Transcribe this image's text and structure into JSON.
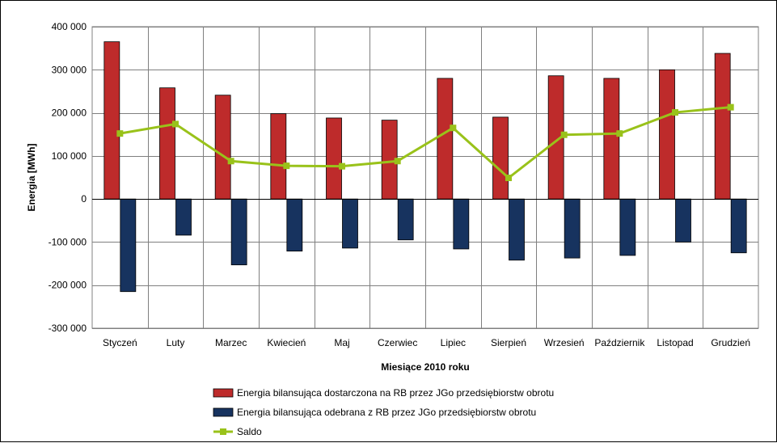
{
  "chart_data": {
    "type": "bar",
    "title": "",
    "xlabel": "Miesiące 2010  roku",
    "ylabel": "Energia [MWh]",
    "ylim": [
      -300000,
      400000
    ],
    "yticks": [
      400000,
      300000,
      200000,
      100000,
      0,
      -100000,
      -200000,
      -300000
    ],
    "ytick_labels": [
      "400 000",
      "300 000",
      "200 000",
      "100 000",
      "0",
      "-100 000",
      "-200 000",
      "-300 000"
    ],
    "grid": true,
    "legend_position": "bottom",
    "categories": [
      "Styczeń",
      "Luty",
      "Marzec",
      "Kwiecień",
      "Maj",
      "Czerwiec",
      "Lipiec",
      "Sierpień",
      "Wrzesień",
      "Październik",
      "Listopad",
      "Grudzień"
    ],
    "series": [
      {
        "name": "Energia bilansująca dostarczona na RB przez JGo przedsiębiorstw obrotu",
        "type": "bar",
        "color": "#be2b2b",
        "values": [
          365000,
          258000,
          241000,
          198000,
          188000,
          183000,
          280000,
          190000,
          286000,
          280000,
          300000,
          338000
        ]
      },
      {
        "name": "Energia bilansująca odebrana z RB przez JGo przedsiębiorstw obrotu",
        "type": "bar",
        "color": "#17335f",
        "values": [
          -215000,
          -84000,
          -153000,
          -121000,
          -114000,
          -95000,
          -116000,
          -142000,
          -137000,
          -131000,
          -100000,
          -125000
        ]
      },
      {
        "name": "Saldo",
        "type": "line",
        "color": "#99c21a",
        "values": [
          152000,
          174000,
          88000,
          77000,
          76000,
          88000,
          165000,
          49000,
          149000,
          152000,
          201000,
          213000
        ]
      }
    ]
  }
}
